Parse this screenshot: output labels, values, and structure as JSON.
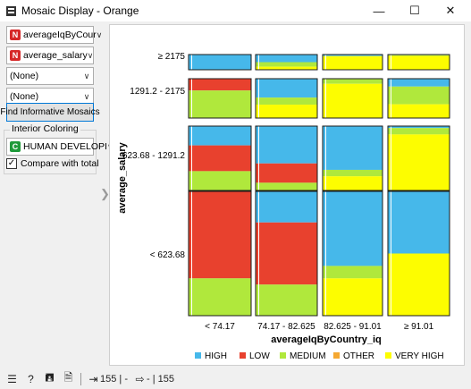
{
  "window": {
    "title": "Mosaic Display - Orange"
  },
  "controls": {
    "variables": [
      {
        "badge": "N",
        "value": "averageIqByCour"
      },
      {
        "badge": "N",
        "value": "average_salary"
      },
      {
        "badge": "",
        "value": "(None)"
      },
      {
        "badge": "",
        "value": "(None)"
      }
    ],
    "find_button": "Find Informative Mosaics",
    "interior_coloring_label": "Interior Coloring",
    "interior_coloring": {
      "badge": "C",
      "value": "HUMAN DEVELOPI"
    },
    "compare_label": "Compare with total",
    "compare_checked": true
  },
  "status": {
    "input_count": "155 | -",
    "output_count": "- | 155"
  },
  "chart_data": {
    "type": "mosaic",
    "xlabel": "averageIqByCountry_iq",
    "ylabel": "average_salary",
    "x_categories": [
      "< 74.17",
      "74.17 - 82.625",
      "82.625 - 91.01",
      "≥ 91.01"
    ],
    "y_categories": [
      "< 623.68",
      "623.68 - 1291.2",
      "1291.2 - 2175",
      "≥ 2175"
    ],
    "legend": [
      "HIGH",
      "LOW",
      "MEDIUM",
      "OTHER",
      "VERY HIGH"
    ],
    "colors": {
      "HIGH": "#46b8ea",
      "LOW": "#e8412e",
      "MEDIUM": "#b0e83c",
      "OTHER": "#f5a832",
      "VERY HIGH": "#fdfd00"
    },
    "columns": [
      {
        "x": "< 74.17",
        "cells": [
          {
            "y": "< 623.68",
            "HIGH": 0,
            "LOW": 0.7,
            "MEDIUM": 0.3,
            "VERY HIGH": 0
          },
          {
            "y": "623.68 - 1291.2",
            "HIGH": 0.3,
            "LOW": 0.4,
            "MEDIUM": 0.3,
            "VERY HIGH": 0
          },
          {
            "y": "1291.2 - 2175",
            "HIGH": 0,
            "LOW": 0.3,
            "MEDIUM": 0.7,
            "VERY HIGH": 0
          },
          {
            "y": "≥ 2175",
            "HIGH": 1,
            "LOW": 0,
            "MEDIUM": 0,
            "VERY HIGH": 0
          }
        ]
      },
      {
        "x": "74.17 - 82.625",
        "cells": [
          {
            "y": "< 623.68",
            "HIGH": 0.25,
            "LOW": 0.5,
            "MEDIUM": 0.25,
            "VERY HIGH": 0
          },
          {
            "y": "623.68 - 1291.2",
            "HIGH": 0.58,
            "LOW": 0.3,
            "MEDIUM": 0.12,
            "VERY HIGH": 0
          },
          {
            "y": "1291.2 - 2175",
            "HIGH": 0.48,
            "LOW": 0,
            "MEDIUM": 0.18,
            "VERY HIGH": 0.34
          },
          {
            "y": "≥ 2175",
            "HIGH": 0.5,
            "LOW": 0,
            "MEDIUM": 0.3,
            "VERY HIGH": 0.2
          }
        ]
      },
      {
        "x": "82.625 - 91.01",
        "cells": [
          {
            "y": "< 623.68",
            "HIGH": 0.6,
            "LOW": 0,
            "MEDIUM": 0.1,
            "VERY HIGH": 0.3
          },
          {
            "y": "623.68 - 1291.2",
            "HIGH": 0.68,
            "LOW": 0,
            "MEDIUM": 0.1,
            "VERY HIGH": 0.22
          },
          {
            "y": "1291.2 - 2175",
            "HIGH": 0,
            "LOW": 0,
            "MEDIUM": 0.13,
            "VERY HIGH": 0.87
          },
          {
            "y": "≥ 2175",
            "HIGH": 0.1,
            "LOW": 0,
            "MEDIUM": 0,
            "VERY HIGH": 0.9
          }
        ]
      },
      {
        "x": "≥ 91.01",
        "cells": [
          {
            "y": "< 623.68",
            "HIGH": 0.5,
            "LOW": 0,
            "MEDIUM": 0,
            "VERY HIGH": 0.5
          },
          {
            "y": "623.68 - 1291.2",
            "HIGH": 0.03,
            "LOW": 0,
            "MEDIUM": 0.1,
            "VERY HIGH": 0.87
          },
          {
            "y": "1291.2 - 2175",
            "HIGH": 0.2,
            "LOW": 0,
            "MEDIUM": 0.45,
            "VERY HIGH": 0.35
          },
          {
            "y": "≥ 2175",
            "HIGH": 0.04,
            "LOW": 0,
            "MEDIUM": 0.05,
            "VERY HIGH": 0.91
          }
        ]
      }
    ]
  }
}
